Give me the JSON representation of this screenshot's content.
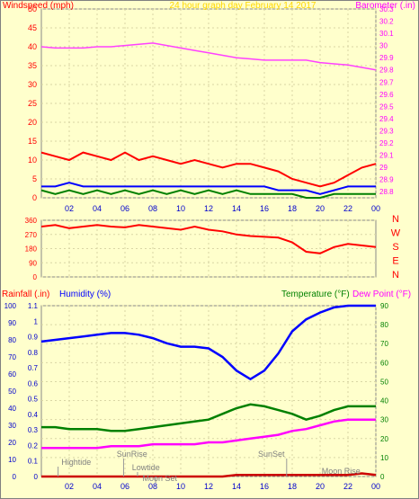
{
  "chart_data": [
    {
      "type": "line",
      "title": "24 hour graph day   February 14 2017",
      "ylabel": "Windspeed (mph)",
      "y2label": "Barometer (.in)",
      "x_ticks": [
        "02",
        "04",
        "06",
        "08",
        "10",
        "12",
        "14",
        "16",
        "18",
        "20",
        "22",
        "00"
      ],
      "ylim": [
        0,
        50
      ],
      "yticks": [
        0,
        5,
        10,
        15,
        20,
        25,
        30,
        35,
        40,
        45,
        50
      ],
      "y2lim": [
        28.75,
        30.3
      ],
      "y2ticks": [
        "28.8",
        "28.9",
        "29",
        "29.1",
        "29.2",
        "29.3",
        "29.4",
        "29.5",
        "29.6",
        "29.7",
        "29.8",
        "29.9",
        "30",
        "30.1",
        "30.2",
        "30.3"
      ],
      "grid": true,
      "series": [
        {
          "axis": "right",
          "color": "#ff40ff",
          "x": [
            0,
            1,
            2,
            3,
            4,
            5,
            6,
            7,
            8,
            9,
            10,
            11,
            12,
            13,
            14,
            15,
            16,
            17,
            18,
            19,
            20,
            21,
            22,
            23,
            24
          ],
          "values": [
            29.99,
            29.98,
            29.98,
            29.98,
            29.99,
            29.99,
            30.0,
            30.01,
            30.02,
            30.0,
            29.98,
            29.96,
            29.94,
            29.92,
            29.9,
            29.89,
            29.88,
            29.88,
            29.88,
            29.88,
            29.86,
            29.85,
            29.84,
            29.82,
            29.8
          ]
        },
        {
          "color": "#ff0000",
          "x": [
            0,
            1,
            2,
            3,
            4,
            5,
            6,
            7,
            8,
            9,
            10,
            11,
            12,
            13,
            14,
            15,
            16,
            17,
            18,
            19,
            20,
            21,
            22,
            23,
            24
          ],
          "values": [
            12,
            11,
            10,
            12,
            11,
            10,
            12,
            10,
            11,
            10,
            9,
            10,
            9,
            8,
            9,
            9,
            8,
            7,
            5,
            4,
            3,
            4,
            6,
            8,
            9
          ]
        },
        {
          "color": "#0000ff",
          "x": [
            0,
            1,
            2,
            3,
            4,
            5,
            6,
            7,
            8,
            9,
            10,
            11,
            12,
            13,
            14,
            15,
            16,
            17,
            18,
            19,
            20,
            21,
            22,
            23,
            24
          ],
          "values": [
            3,
            3,
            4,
            3,
            3,
            3,
            3,
            3,
            3,
            3,
            3,
            3,
            3,
            3,
            3,
            3,
            3,
            2,
            2,
            2,
            1,
            2,
            3,
            3,
            3
          ]
        },
        {
          "color": "#008000",
          "x": [
            0,
            1,
            2,
            3,
            4,
            5,
            6,
            7,
            8,
            9,
            10,
            11,
            12,
            13,
            14,
            15,
            16,
            17,
            18,
            19,
            20,
            21,
            22,
            23,
            24
          ],
          "values": [
            2,
            1,
            2,
            1,
            2,
            1,
            2,
            1,
            2,
            1,
            2,
            1,
            2,
            1,
            2,
            1,
            1,
            1,
            1,
            0,
            0,
            1,
            1,
            1,
            1
          ]
        }
      ]
    },
    {
      "type": "line",
      "ylabel": "",
      "yticks": [
        0,
        90,
        180,
        270,
        360
      ],
      "ylim": [
        0,
        360
      ],
      "y2labels": [
        "N",
        "W",
        "S",
        "E",
        "N"
      ],
      "x_ticks": [],
      "series": [
        {
          "color": "#ff0000",
          "x": [
            0,
            1,
            2,
            3,
            4,
            5,
            6,
            7,
            8,
            9,
            10,
            11,
            12,
            13,
            14,
            15,
            16,
            17,
            18,
            19,
            20,
            21,
            22,
            23,
            24
          ],
          "values": [
            320,
            330,
            310,
            320,
            330,
            320,
            315,
            330,
            320,
            310,
            300,
            320,
            300,
            290,
            270,
            260,
            255,
            250,
            220,
            160,
            150,
            190,
            210,
            200,
            190
          ]
        }
      ]
    },
    {
      "type": "line",
      "ylabel_left1": "Rainfall (.in)",
      "ylabel_left2": "Humidity (%)",
      "ylabel_right1": "Temperature (°F)",
      "ylabel_right2": "Dew Point (°F)",
      "x_ticks": [
        "02",
        "04",
        "06",
        "08",
        "10",
        "12",
        "14",
        "16",
        "18",
        "20",
        "22",
        "00"
      ],
      "rain_ticks": [
        "0",
        "0.1",
        "0.2",
        "0.3",
        "0.4",
        "0.5",
        "0.6",
        "0.7",
        "0.8",
        "0.9",
        "1",
        "1.1"
      ],
      "hum_ticks": [
        "0",
        "10",
        "20",
        "30",
        "40",
        "50",
        "60",
        "70",
        "80",
        "90",
        "100"
      ],
      "temp_ticks": [
        "0",
        "10",
        "20",
        "30",
        "40",
        "50",
        "60",
        "70",
        "80",
        "90"
      ],
      "ylim_temp": [
        0,
        90
      ],
      "annotations": [
        "Hightide",
        "SunRise",
        "Lowtide",
        "Moon Set",
        "SunSet",
        "Moon Rise"
      ],
      "series": [
        {
          "name": "Humidity",
          "color": "#0000ff",
          "axis": "humidity",
          "x": [
            0,
            1,
            2,
            3,
            4,
            5,
            6,
            7,
            8,
            9,
            10,
            11,
            12,
            13,
            14,
            15,
            16,
            17,
            18,
            19,
            20,
            21,
            22,
            23,
            24
          ],
          "values": [
            79,
            80,
            81,
            82,
            83,
            84,
            84,
            83,
            81,
            78,
            76,
            76,
            75,
            70,
            62,
            57,
            62,
            72,
            85,
            92,
            96,
            99,
            100,
            100,
            100
          ]
        },
        {
          "name": "Temperature",
          "color": "#008000",
          "x": [
            0,
            1,
            2,
            3,
            4,
            5,
            6,
            7,
            8,
            9,
            10,
            11,
            12,
            13,
            14,
            15,
            16,
            17,
            18,
            19,
            20,
            21,
            22,
            23,
            24
          ],
          "values": [
            26,
            26,
            25,
            25,
            25,
            24,
            24,
            25,
            26,
            27,
            28,
            29,
            30,
            33,
            36,
            38,
            37,
            35,
            33,
            30,
            32,
            35,
            37,
            37,
            37
          ]
        },
        {
          "name": "Dew Point",
          "color": "#ff00ff",
          "x": [
            0,
            1,
            2,
            3,
            4,
            5,
            6,
            7,
            8,
            9,
            10,
            11,
            12,
            13,
            14,
            15,
            16,
            17,
            18,
            19,
            20,
            21,
            22,
            23,
            24
          ],
          "values": [
            15,
            15,
            15,
            15,
            15,
            16,
            16,
            16,
            17,
            17,
            17,
            17,
            18,
            18,
            19,
            20,
            21,
            22,
            24,
            25,
            27,
            29,
            30,
            30,
            30
          ]
        },
        {
          "name": "Rainfall",
          "color": "#cc0000",
          "axis": "rain",
          "x": [
            0,
            1,
            2,
            3,
            4,
            5,
            6,
            7,
            8,
            9,
            10,
            11,
            12,
            13,
            14,
            15,
            16,
            17,
            18,
            19,
            20,
            21,
            22,
            23,
            24
          ],
          "values": [
            0,
            0,
            0,
            0,
            0,
            0,
            0,
            0,
            0,
            0,
            0,
            0,
            0,
            0,
            0.01,
            0.01,
            0.01,
            0.01,
            0.01,
            0.01,
            0.01,
            0.01,
            0.01,
            0.02,
            0.01
          ]
        }
      ]
    }
  ]
}
